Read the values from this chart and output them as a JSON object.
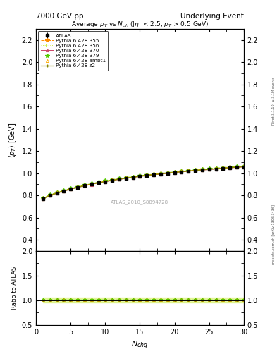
{
  "title_left": "7000 GeV pp",
  "title_right": "Underlying Event",
  "subtitle": "Average $p_T$ vs $N_{ch}$ ($|\\eta|$ < 2.5, $p_T$ > 0.5 GeV)",
  "watermark": "ATLAS_2010_S8894728",
  "right_label_bottom": "mcplots.cern.ch [arXiv:1306.3436]",
  "right_label_top": "Rivet 3.1.10, ≥ 3.1M events",
  "xlabel": "$N_{chg}$",
  "ylabel": "$\\langle p_T \\rangle$ [GeV]",
  "ylabel_ratio": "Ratio to ATLAS",
  "xlim": [
    0,
    30
  ],
  "ylim_main": [
    0.3,
    2.3
  ],
  "ylim_ratio": [
    0.5,
    2.0
  ],
  "yticks_main": [
    0.4,
    0.6,
    0.8,
    1.0,
    1.2,
    1.4,
    1.6,
    1.8,
    2.0,
    2.2
  ],
  "yticks_ratio": [
    0.5,
    1.0,
    1.5,
    2.0
  ],
  "nch_values": [
    1,
    2,
    3,
    4,
    5,
    6,
    7,
    8,
    9,
    10,
    11,
    12,
    13,
    14,
    15,
    16,
    17,
    18,
    19,
    20,
    21,
    22,
    23,
    24,
    25,
    26,
    27,
    28,
    29,
    30
  ],
  "atlas_pt": [
    0.77,
    0.8,
    0.82,
    0.838,
    0.856,
    0.872,
    0.887,
    0.9,
    0.912,
    0.924,
    0.934,
    0.944,
    0.953,
    0.962,
    0.97,
    0.978,
    0.985,
    0.992,
    0.998,
    1.005,
    1.011,
    1.017,
    1.023,
    1.028,
    1.033,
    1.038,
    1.043,
    1.048,
    1.052,
    1.057
  ],
  "py355_pt": [
    0.773,
    0.803,
    0.824,
    0.842,
    0.86,
    0.876,
    0.891,
    0.904,
    0.917,
    0.929,
    0.939,
    0.949,
    0.958,
    0.967,
    0.975,
    0.983,
    0.99,
    0.997,
    1.003,
    1.01,
    1.016,
    1.022,
    1.028,
    1.033,
    1.038,
    1.043,
    1.048,
    1.053,
    1.057,
    1.062
  ],
  "py356_pt": [
    0.771,
    0.801,
    0.822,
    0.84,
    0.857,
    0.873,
    0.888,
    0.901,
    0.914,
    0.926,
    0.936,
    0.946,
    0.955,
    0.964,
    0.972,
    0.98,
    0.987,
    0.994,
    1.0,
    1.007,
    1.013,
    1.019,
    1.025,
    1.03,
    1.035,
    1.04,
    1.045,
    1.05,
    1.054,
    1.059
  ],
  "py370_pt": [
    0.768,
    0.798,
    0.819,
    0.838,
    0.855,
    0.871,
    0.886,
    0.899,
    0.912,
    0.924,
    0.934,
    0.944,
    0.953,
    0.962,
    0.97,
    0.978,
    0.985,
    0.992,
    0.998,
    1.005,
    1.011,
    1.017,
    1.023,
    1.028,
    1.033,
    1.038,
    1.043,
    1.048,
    1.052,
    1.057
  ],
  "py379_pt": [
    0.775,
    0.805,
    0.826,
    0.844,
    0.862,
    0.878,
    0.893,
    0.906,
    0.919,
    0.931,
    0.941,
    0.951,
    0.96,
    0.969,
    0.977,
    0.985,
    0.992,
    0.999,
    1.005,
    1.012,
    1.018,
    1.024,
    1.03,
    1.035,
    1.04,
    1.045,
    1.05,
    1.055,
    1.059,
    1.064
  ],
  "pyambt1_pt": [
    0.772,
    0.802,
    0.823,
    0.842,
    0.859,
    0.875,
    0.89,
    0.903,
    0.916,
    0.928,
    0.938,
    0.948,
    0.957,
    0.966,
    0.974,
    0.982,
    0.989,
    0.996,
    1.002,
    1.009,
    1.015,
    1.021,
    1.027,
    1.032,
    1.037,
    1.042,
    1.047,
    1.052,
    1.056,
    1.061
  ],
  "pyz2_pt": [
    0.769,
    0.799,
    0.82,
    0.839,
    0.856,
    0.872,
    0.887,
    0.901,
    0.913,
    0.925,
    0.936,
    0.946,
    0.955,
    0.964,
    0.972,
    0.98,
    0.987,
    0.994,
    1.0,
    1.007,
    1.013,
    1.019,
    1.025,
    1.03,
    1.035,
    1.04,
    1.045,
    1.05,
    1.054,
    1.059
  ],
  "color_355": "#FF8C00",
  "color_356": "#CCEE44",
  "color_370": "#CC4466",
  "color_379": "#55CC00",
  "color_ambt1": "#FFAA00",
  "color_z2": "#888800",
  "color_atlas": "#000000",
  "ratio_band_color": "#CCEE44",
  "ratio_band_alpha": 0.5
}
